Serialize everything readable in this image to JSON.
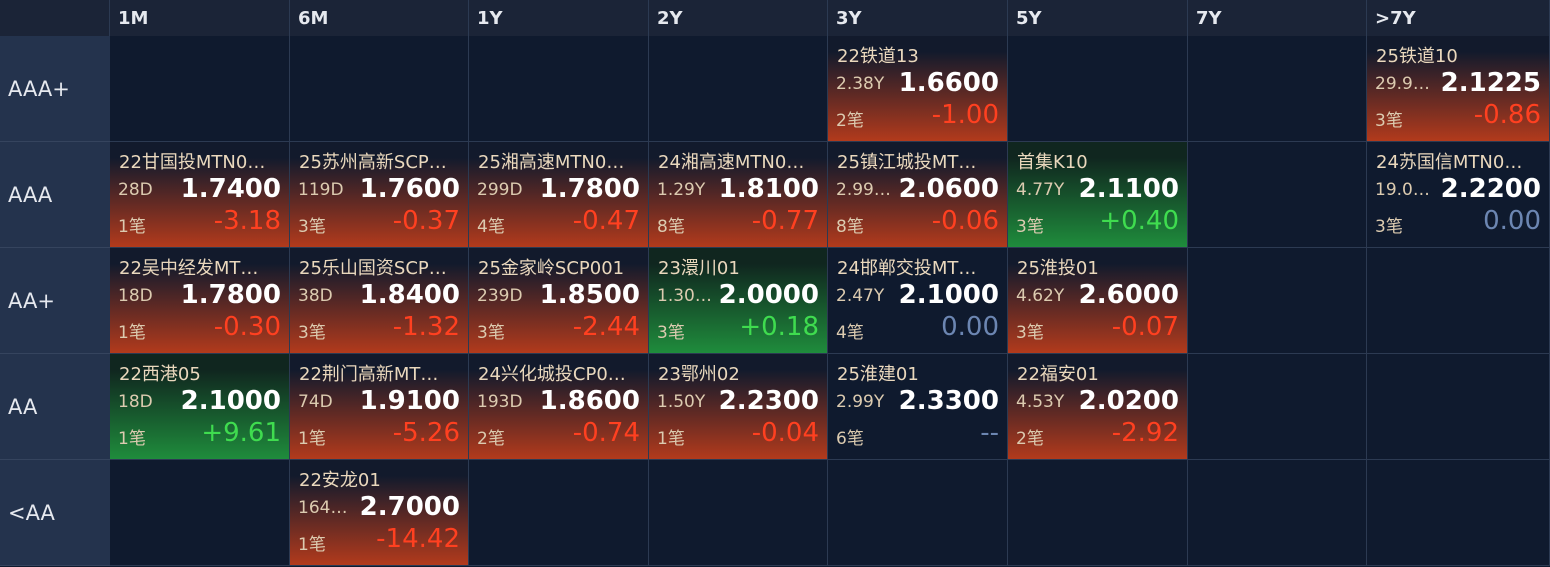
{
  "columns": [
    "1M",
    "6M",
    "1Y",
    "2Y",
    "3Y",
    "5Y",
    "7Y",
    ">7Y"
  ],
  "rows": [
    {
      "label": "AAA+",
      "cells": [
        null,
        null,
        null,
        null,
        {
          "name": "22铁道13",
          "term": "2.38Y",
          "yield": "1.6600",
          "count": "2笔",
          "change": "-1.00"
        },
        null,
        null,
        {
          "name": "25铁道10",
          "term": "29.9…",
          "yield": "2.1225",
          "count": "3笔",
          "change": "-0.86"
        }
      ]
    },
    {
      "label": "AAA",
      "cells": [
        {
          "name": "22甘国投MTN0…",
          "term": "28D",
          "yield": "1.7400",
          "count": "1笔",
          "change": "-3.18"
        },
        {
          "name": "25苏州高新SCP…",
          "term": "119D",
          "yield": "1.7600",
          "count": "3笔",
          "change": "-0.37"
        },
        {
          "name": "25湘高速MTN0…",
          "term": "299D",
          "yield": "1.7800",
          "count": "4笔",
          "change": "-0.47"
        },
        {
          "name": "24湘高速MTN0…",
          "term": "1.29Y",
          "yield": "1.8100",
          "count": "8笔",
          "change": "-0.77"
        },
        {
          "name": "25镇江城投MT…",
          "term": "2.99…",
          "yield": "2.0600",
          "count": "8笔",
          "change": "-0.06"
        },
        {
          "name": "首集K10",
          "term": "4.77Y",
          "yield": "2.1100",
          "count": "3笔",
          "change": "+0.40"
        },
        null,
        {
          "name": "24苏国信MTN0…",
          "term": "19.0…",
          "yield": "2.2200",
          "count": "3笔",
          "change": "0.00"
        }
      ]
    },
    {
      "label": "AA+",
      "cells": [
        {
          "name": "22吴中经发MT…",
          "term": "18D",
          "yield": "1.7800",
          "count": "1笔",
          "change": "-0.30"
        },
        {
          "name": "25乐山国资SCP…",
          "term": "38D",
          "yield": "1.8400",
          "count": "3笔",
          "change": "-1.32"
        },
        {
          "name": "25金家岭SCP001",
          "term": "239D",
          "yield": "1.8500",
          "count": "3笔",
          "change": "-2.44"
        },
        {
          "name": "23澴川01",
          "term": "1.30…",
          "yield": "2.0000",
          "count": "3笔",
          "change": "+0.18"
        },
        {
          "name": "24邯郸交投MT…",
          "term": "2.47Y",
          "yield": "2.1000",
          "count": "4笔",
          "change": "0.00"
        },
        {
          "name": "25淮投01",
          "term": "4.62Y",
          "yield": "2.6000",
          "count": "3笔",
          "change": "-0.07"
        },
        null,
        null
      ]
    },
    {
      "label": "AA",
      "cells": [
        {
          "name": "22西港05",
          "term": "18D",
          "yield": "2.1000",
          "count": "1笔",
          "change": "+9.61"
        },
        {
          "name": "22荆门高新MT…",
          "term": "74D",
          "yield": "1.9100",
          "count": "1笔",
          "change": "-5.26"
        },
        {
          "name": "24兴化城投CP0…",
          "term": "193D",
          "yield": "1.8600",
          "count": "2笔",
          "change": "-0.74"
        },
        {
          "name": "23鄂州02",
          "term": "1.50Y",
          "yield": "2.2300",
          "count": "1笔",
          "change": "-0.04"
        },
        {
          "name": "25淮建01",
          "term": "2.99Y",
          "yield": "2.3300",
          "count": "6笔",
          "change": "--"
        },
        {
          "name": "22福安01",
          "term": "4.53Y",
          "yield": "2.0200",
          "count": "2笔",
          "change": "-2.92"
        },
        null,
        null
      ]
    },
    {
      "label": "<AA",
      "cells": [
        null,
        {
          "name": "22安龙01",
          "term": "164…",
          "yield": "2.7000",
          "count": "1笔",
          "change": "-14.42"
        },
        null,
        null,
        null,
        null,
        null,
        null
      ]
    }
  ]
}
